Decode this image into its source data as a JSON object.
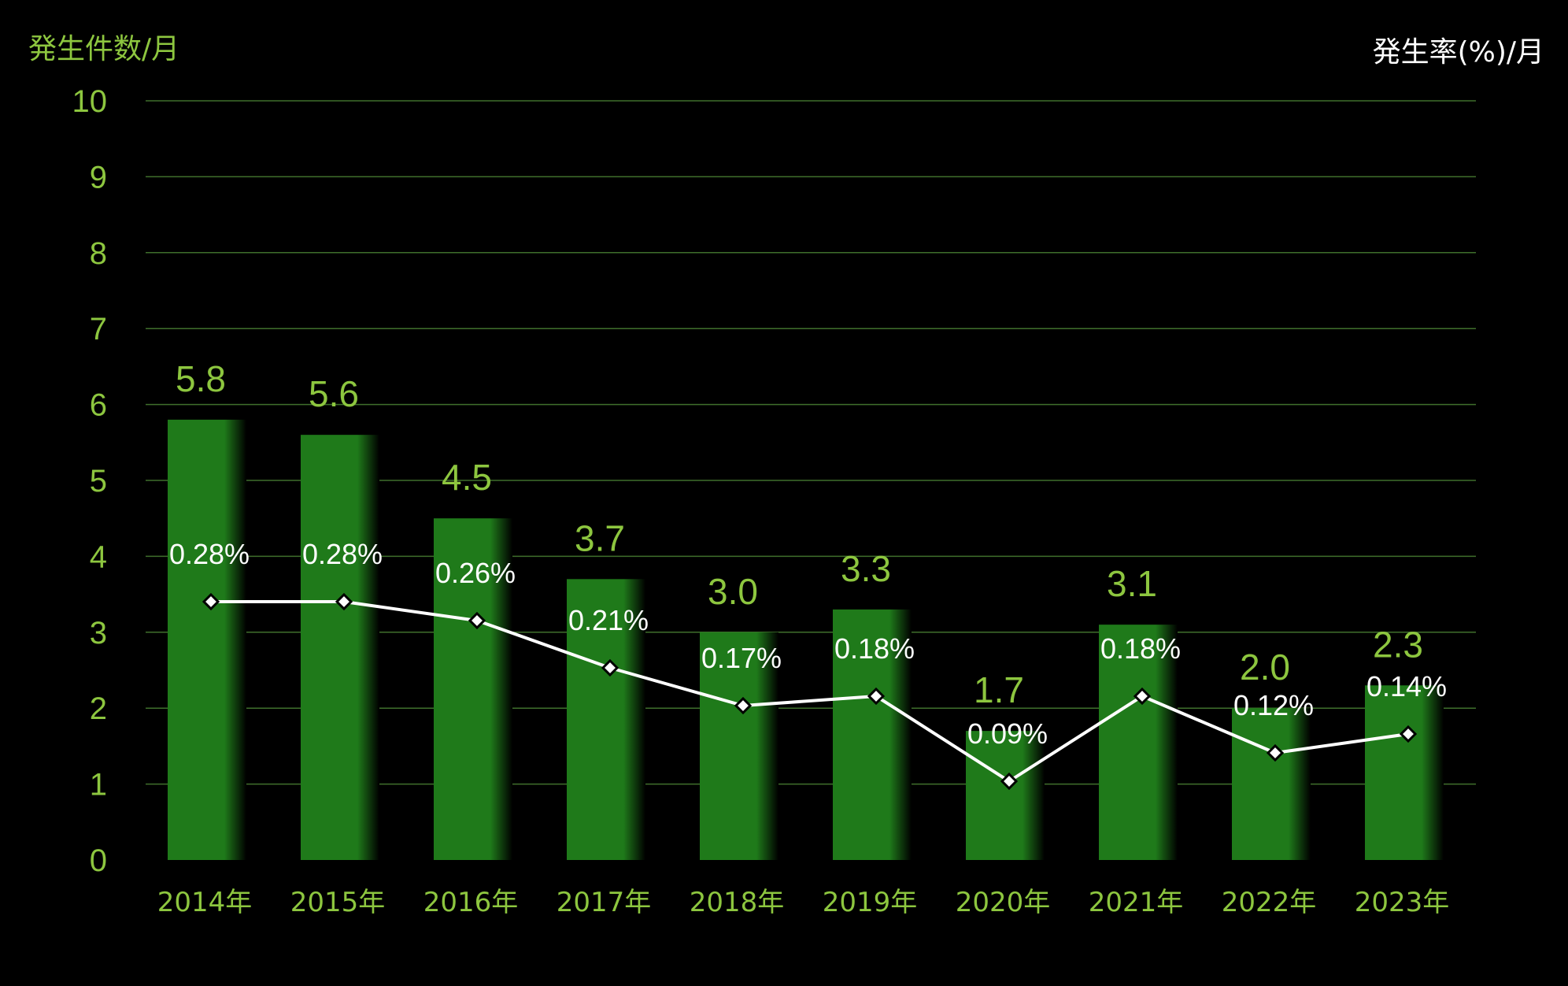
{
  "chart_data": {
    "type": "bar",
    "left_axis_title": "発生件数/月",
    "right_axis_title": "発生率(%)/月",
    "categories": [
      "2014年",
      "2015年",
      "2016年",
      "2017年",
      "2018年",
      "2019年",
      "2020年",
      "2021年",
      "2022年",
      "2023年"
    ],
    "series": [
      {
        "type": "bar",
        "axis": "left",
        "values": [
          5.8,
          5.6,
          4.5,
          3.7,
          3.0,
          3.3,
          1.7,
          3.1,
          2.0,
          2.3
        ],
        "labels": [
          "5.8",
          "5.6",
          "4.5",
          "3.7",
          "3.0",
          "3.3",
          "1.7",
          "3.1",
          "2.0",
          "2.3"
        ],
        "color": "#1f7a1a"
      },
      {
        "type": "line",
        "axis": "right",
        "values": [
          0.28,
          0.28,
          0.26,
          0.21,
          0.17,
          0.18,
          0.09,
          0.18,
          0.12,
          0.14
        ],
        "labels": [
          "0.28%",
          "0.28%",
          "0.26%",
          "0.21%",
          "0.17%",
          "0.18%",
          "0.09%",
          "0.18%",
          "0.12%",
          "0.14%"
        ],
        "color": "#ffffff"
      }
    ],
    "yticks": [
      "0",
      "1",
      "2",
      "3",
      "4",
      "5",
      "6",
      "7",
      "8",
      "9",
      "10"
    ],
    "ylim": [
      0,
      10
    ],
    "grid": true,
    "colors": {
      "background": "#000000",
      "grid": "#3f6f2c",
      "axis_text": "#8dc63f",
      "right_title": "#ffffff",
      "bar": "#1f7a1a"
    }
  }
}
